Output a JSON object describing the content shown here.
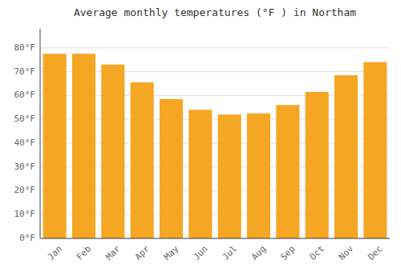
{
  "chart_data": {
    "type": "bar",
    "title": "Average monthly temperatures (°F ) in Northam",
    "categories": [
      "Jan",
      "Feb",
      "Mar",
      "Apr",
      "May",
      "Jun",
      "Jul",
      "Aug",
      "Sep",
      "Oct",
      "Nov",
      "Dec"
    ],
    "values": [
      77.5,
      77.5,
      73.0,
      65.5,
      58.5,
      54.0,
      52.0,
      52.5,
      56.0,
      61.5,
      68.5,
      74.0
    ],
    "color": "#F5A623",
    "ylim": [
      0,
      88
    ],
    "yticks": [
      {
        "value": 0,
        "label": "0°F"
      },
      {
        "value": 10,
        "label": "10°F"
      },
      {
        "value": 20,
        "label": "20°F"
      },
      {
        "value": 30,
        "label": "30°F"
      },
      {
        "value": 40,
        "label": "40°F"
      },
      {
        "value": 50,
        "label": "50°F"
      },
      {
        "value": 60,
        "label": "60°F"
      },
      {
        "value": 70,
        "label": "70°F"
      },
      {
        "value": 80,
        "label": "80°F"
      }
    ],
    "grid": true
  }
}
